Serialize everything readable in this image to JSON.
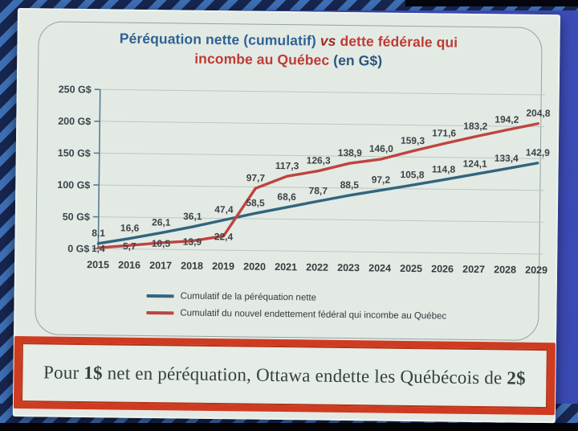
{
  "colors": {
    "title_blue": "#2f6293",
    "title_red": "#bf3b35",
    "banner_border": "#cf3b20",
    "slide_background": "#e3eae4",
    "backdrop_blue": "#3a49b2"
  },
  "title": {
    "line1_blue": "Péréquation nette (cumulatif)",
    "line1_vs": "vs",
    "line1_red": "dette fédérale qui",
    "line2_red": "incombe au Québec",
    "line2_blue": " (en G$)"
  },
  "chart_data": {
    "type": "line",
    "title": "Péréquation nette (cumulatif) vs dette fédérale qui incombe au Québec (en G$)",
    "categories": [
      "2015",
      "2016",
      "2017",
      "2018",
      "2019",
      "2020",
      "2021",
      "2022",
      "2023",
      "2024",
      "2025",
      "2026",
      "2027",
      "2028",
      "2029"
    ],
    "series": [
      {
        "name": "Cumulatif de la péréquation nette",
        "color": "#31657e",
        "values": [
          8.1,
          16.6,
          26.1,
          36.1,
          47.4,
          58.5,
          68.6,
          78.7,
          88.5,
          97.2,
          105.8,
          114.8,
          124.1,
          133.4,
          142.9
        ],
        "labels": [
          "8,1",
          "16,6",
          "26,1",
          "36,1",
          "47,4",
          "58,5",
          "68,6",
          "78,7",
          "88,5",
          "97,2",
          "105,8",
          "114,8",
          "124,1",
          "133,4",
          "142,9"
        ]
      },
      {
        "name": "Cumulatif du nouvel endettement fédéral qui incombe au Québec",
        "color": "#bf4340",
        "values": [
          1.4,
          5.7,
          10.5,
          13.9,
          22.4,
          97.7,
          117.3,
          126.3,
          138.9,
          146.0,
          159.3,
          171.6,
          183.2,
          194.2,
          204.8
        ],
        "labels": [
          "1,4",
          "5,7",
          "10,5",
          "13,9",
          "22,4",
          "97,7",
          "117,3",
          "126,3",
          "138,9",
          "146,0",
          "159,3",
          "171,6",
          "183,2",
          "194,2",
          "204,8"
        ]
      }
    ],
    "xlabel": "",
    "ylabel": "G$",
    "ylim": [
      0,
      250
    ],
    "yticks": [
      "250 G$",
      "200 G$",
      "150 G$",
      "100 G$",
      "50 G$",
      "0 G$"
    ],
    "grid": true,
    "legend_position": "bottom"
  },
  "banner": {
    "prefix": "Pour ",
    "amount1": "1$",
    "middle": " net en péréquation, Ottawa endette les Québécois de ",
    "amount2": "2$"
  }
}
